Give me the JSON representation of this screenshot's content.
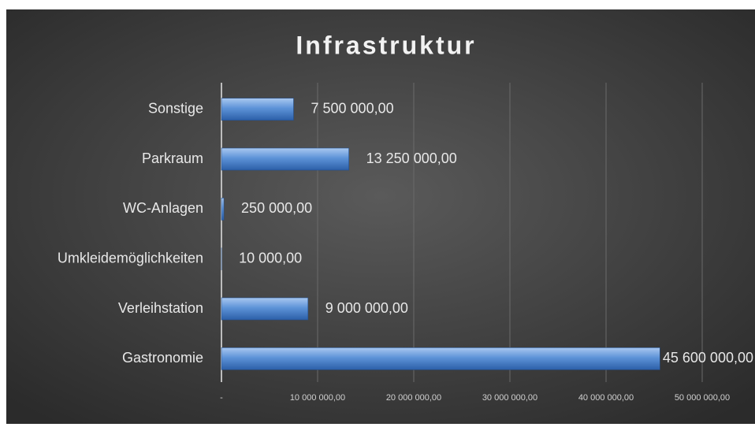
{
  "chart_data": {
    "type": "bar",
    "orientation": "horizontal",
    "title": "Infrastruktur",
    "categories": [
      "Sonstige",
      "Parkraum",
      "WC-Anlagen",
      "Umkleidemöglichkeiten",
      "Verleihstation",
      "Gastronomie"
    ],
    "values": [
      7500000,
      13250000,
      250000,
      10000,
      9000000,
      45600000
    ],
    "value_labels": [
      "7 500 000,00",
      "13 250 000,00",
      "250 000,00",
      "10 000,00",
      "9 000 000,00",
      "45 600 000,00"
    ],
    "color": "#4f86d0",
    "xlim": [
      0,
      50000000
    ],
    "xticks": [
      {
        "value": 0,
        "label": "-"
      },
      {
        "value": 10000000,
        "label": "10 000 000,00"
      },
      {
        "value": 20000000,
        "label": "20 000 000,00"
      },
      {
        "value": 30000000,
        "label": "30 000 000,00"
      },
      {
        "value": 40000000,
        "label": "40 000 000,00"
      },
      {
        "value": 50000000,
        "label": "50 000 000,00"
      }
    ],
    "grid": true
  }
}
